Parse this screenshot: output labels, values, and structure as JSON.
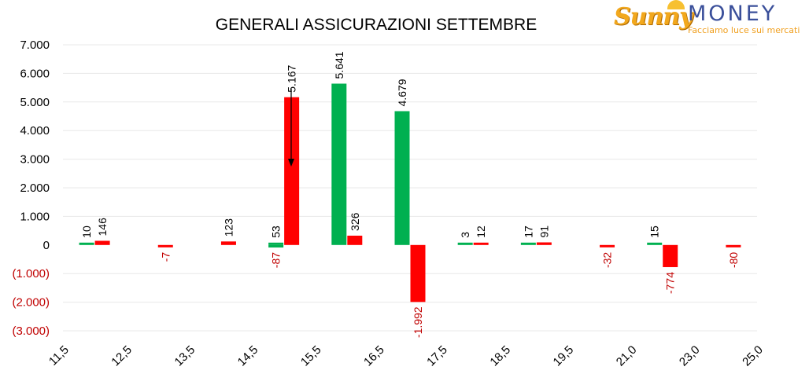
{
  "logo": {
    "brand_left": "Sunny",
    "brand_right": "MONEY",
    "tagline": "Facciamo luce sui mercati"
  },
  "colors": {
    "positive": "#00b050",
    "negative": "#ff0000",
    "negative_label": "#c00000",
    "text": "#000000",
    "grid": "#e8e8e8"
  },
  "chart_data": {
    "type": "bar",
    "title": "GENERALI ASSICURAZIONI SETTEMBRE",
    "xlabel": "",
    "ylabel": "",
    "ylim": [
      -3000,
      7000
    ],
    "yticks": [
      7000,
      6000,
      5000,
      4000,
      3000,
      2000,
      1000,
      0,
      -1000,
      -2000,
      -3000
    ],
    "ytick_labels": [
      "7.000",
      "6.000",
      "5.000",
      "4.000",
      "3.000",
      "2.000",
      "1.000",
      "0",
      "(1.000)",
      "(2.000)",
      "(3.000)"
    ],
    "categories": [
      "11,5",
      "12,5",
      "13,5",
      "14,5",
      "15,5",
      "16,5",
      "17,5",
      "18,5",
      "19,5",
      "21,0",
      "23,0",
      "25,0"
    ],
    "grid": true,
    "legend": "none",
    "series": [
      {
        "color": "green",
        "values": [
          10,
          null,
          null,
          53,
          5641,
          4679,
          3,
          17,
          null,
          15,
          null,
          null
        ],
        "labels": [
          "10",
          "",
          "",
          "53",
          "5.641",
          "4.679",
          "3",
          "17",
          "",
          "15",
          "",
          ""
        ]
      },
      {
        "color": "green-negative",
        "values": [
          null,
          null,
          null,
          -87,
          null,
          null,
          null,
          null,
          null,
          null,
          null,
          null
        ],
        "labels": [
          "",
          "",
          "",
          "-87",
          "",
          "",
          "",
          "",
          "",
          "",
          "",
          ""
        ]
      },
      {
        "color": "red",
        "values": [
          146,
          -7,
          123,
          5167,
          326,
          -1992,
          12,
          91,
          -32,
          -774,
          -80,
          null
        ],
        "labels": [
          "146",
          "-7",
          "123",
          "5.167",
          "326",
          "-1.992",
          "12",
          "91",
          "-32",
          "-774",
          "-80",
          ""
        ]
      }
    ],
    "annotations": [
      "arrow pointing down toward the 15,5 bars"
    ]
  }
}
